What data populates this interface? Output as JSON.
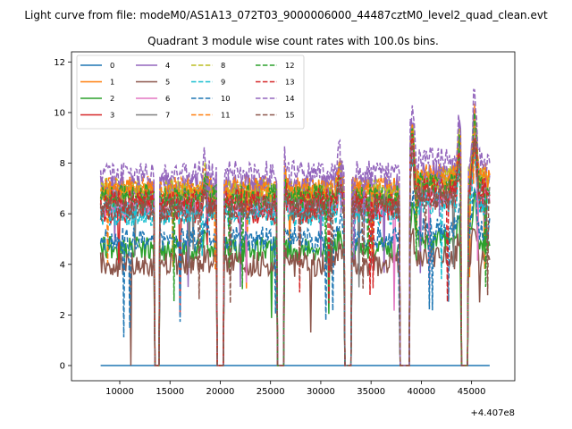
{
  "chart_data": {
    "type": "line",
    "suptitle": "Light curve from file: modeM0/AS1A13_072T03_9000006000_44487cztM0_level2_quad_clean.evt",
    "title": "Quadrant 3 module wise count rates with 100.0s bins.",
    "xlabel": "",
    "ylabel": "",
    "x_offset_label": "+4.407e8",
    "xlim": [
      5200,
      49300
    ],
    "ylim": [
      -0.6,
      12.4
    ],
    "xticks": [
      10000,
      15000,
      20000,
      25000,
      30000,
      35000,
      40000,
      45000
    ],
    "xtick_labels": [
      "10000",
      "15000",
      "20000",
      "25000",
      "30000",
      "35000",
      "40000",
      "45000"
    ],
    "yticks": [
      0,
      2,
      4,
      6,
      8,
      10,
      12
    ],
    "ytick_labels": [
      "0",
      "2",
      "4",
      "6",
      "8",
      "10",
      "12"
    ],
    "legend": {
      "placement": "top-left",
      "columns": 4
    },
    "gaps": [
      [
        13500,
        13900
      ],
      [
        19700,
        20300
      ],
      [
        25700,
        26300
      ],
      [
        32400,
        33000
      ],
      [
        37900,
        38800
      ],
      [
        44000,
        44600
      ]
    ],
    "series": [
      {
        "name": "0",
        "color": "#1f77b4",
        "dash": "solid",
        "level": 0.0,
        "flat": true
      },
      {
        "name": "1",
        "color": "#ff7f0e",
        "dash": "solid",
        "level": 6.8
      },
      {
        "name": "2",
        "color": "#2ca02c",
        "dash": "solid",
        "level": 4.6
      },
      {
        "name": "3",
        "color": "#d62728",
        "dash": "solid",
        "level": 6.1
      },
      {
        "name": "4",
        "color": "#9467bd",
        "dash": "solid",
        "level": 7.1
      },
      {
        "name": "5",
        "color": "#8c564b",
        "dash": "solid",
        "level": 4.0
      },
      {
        "name": "6",
        "color": "#e377c2",
        "dash": "solid",
        "level": 6.3
      },
      {
        "name": "7",
        "color": "#7f7f7f",
        "dash": "solid",
        "level": 6.6
      },
      {
        "name": "8",
        "color": "#bcbd22",
        "dash": "dashed",
        "level": 6.9
      },
      {
        "name": "9",
        "color": "#17becf",
        "dash": "dashed",
        "level": 6.0
      },
      {
        "name": "10",
        "color": "#1f77b4",
        "dash": "dashed",
        "level": 5.0
      },
      {
        "name": "11",
        "color": "#ff7f0e",
        "dash": "dashed",
        "level": 7.0
      },
      {
        "name": "12",
        "color": "#2ca02c",
        "dash": "dashed",
        "level": 6.7
      },
      {
        "name": "13",
        "color": "#d62728",
        "dash": "dashed",
        "level": 6.5
      },
      {
        "name": "14",
        "color": "#9467bd",
        "dash": "dashed",
        "level": 7.6
      },
      {
        "name": "15",
        "color": "#8c564b",
        "dash": "dashed",
        "level": 6.2
      }
    ]
  }
}
